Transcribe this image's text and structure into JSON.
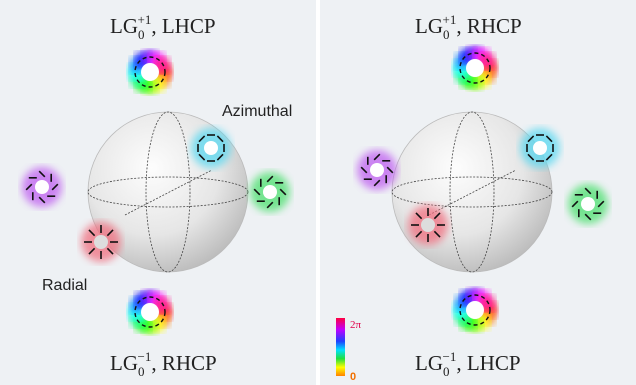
{
  "panels": [
    {
      "top": {
        "base": "LG",
        "sub": "0",
        "sup": "+1",
        "pol": ", LHCP"
      },
      "bottom": {
        "base": "LG",
        "sub": "0",
        "sup": "−1",
        "pol": ", RHCP"
      },
      "labels": [
        "Azimuthal",
        "Radial"
      ]
    },
    {
      "top": {
        "base": "LG",
        "sub": "0",
        "sup": "+1",
        "pol": ", RHCP"
      },
      "bottom": {
        "base": "LG",
        "sub": "0",
        "sup": "−1",
        "pol": ", LHCP"
      }
    }
  ],
  "colorbar": {
    "max_label": "2π",
    "min_label": "0"
  }
}
